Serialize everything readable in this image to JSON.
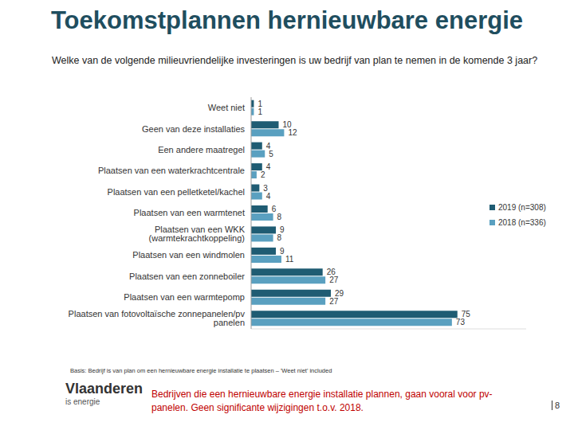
{
  "chart_data": {
    "type": "bar",
    "orientation": "horizontal",
    "title": "Toekomstplannen hernieuwbare energie",
    "subtitle": "Welke van de volgende milieuvriendelijke investeringen is uw bedrijf van plan te nemen in de komende 3 jaar?",
    "categories": [
      "Weet niet",
      "Geen van deze installaties",
      "Een andere maatregel",
      "Plaatsen van een waterkrachtcentrale",
      "Plaatsen van een pelletketel/kachel",
      "Plaatsen van een warmtenet",
      "Plaatsen van een WKK (warmtekrachtkoppeling)",
      "Plaatsen van een windmolen",
      "Plaatsen van een zonneboiler",
      "Plaatsen van een warmtepomp",
      "Plaatsen van fotovoltaïsche zonnepanelen/pv panelen"
    ],
    "series": [
      {
        "name": "2019 (n=308)",
        "color": "#1f5c73",
        "values": [
          1,
          10,
          4,
          4,
          3,
          6,
          9,
          9,
          26,
          29,
          75
        ]
      },
      {
        "name": "2018 (n=336)",
        "color": "#5aa0c0",
        "values": [
          1,
          12,
          5,
          2,
          4,
          8,
          8,
          11,
          27,
          27,
          73
        ]
      }
    ],
    "xlim": [
      0,
      100
    ],
    "xticks": [
      0,
      100
    ],
    "tick_labels": "y",
    "data_labels": true,
    "legend": "right",
    "annotations": {
      "basis": "Basis: Bedrijf is van plan om een hernieuwbare energie installatie te plaatsen – 'Weet niet' included",
      "conclusion": "Bedrijven die een hernieuwbare energie installatie plannen, gaan vooral voor pv-panelen. Geen significante wijzigingen t.o.v. 2018.",
      "logo": "Vlaanderen",
      "logo_sub": "is energie",
      "page": "8"
    }
  }
}
